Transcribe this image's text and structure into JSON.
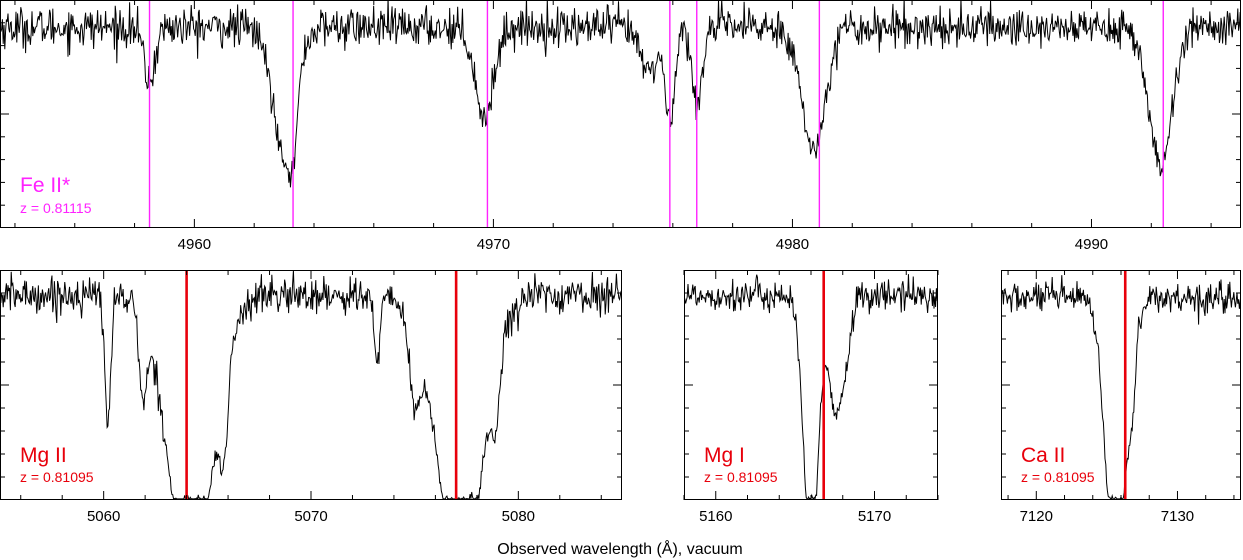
{
  "figure": {
    "xlabel": "Observed wavelength (Å), vacuum"
  },
  "colors": {
    "fe_marker": "#ff22ff",
    "red_marker": "#e8000b",
    "spectrum": "#000000",
    "frame": "#000000"
  },
  "chart_data": [
    {
      "type": "line",
      "id": "fe",
      "ion": "Fe II*",
      "redshift": "z = 0.81115",
      "label_color": "#ff22ff",
      "xlim": [
        4953.5,
        4995.0
      ],
      "ylim": [
        0.0,
        1.0
      ],
      "xticks": [
        4960,
        4970,
        4980,
        4990
      ],
      "xtick_labels": [
        "4960",
        "4970",
        "4980",
        "4990"
      ],
      "continuum": 0.88,
      "markers": [
        4958.5,
        4963.3,
        4969.8,
        4975.9,
        4976.8,
        4980.9,
        4992.4
      ],
      "absorption": [
        {
          "center": 4958.5,
          "sigma": 0.18,
          "depth": 0.28
        },
        {
          "center": 4963.0,
          "sigma": 0.38,
          "depth": 0.62
        },
        {
          "center": 4963.3,
          "sigma": 0.14,
          "depth": 0.25
        },
        {
          "center": 4969.7,
          "sigma": 0.3,
          "depth": 0.45
        },
        {
          "center": 4975.2,
          "sigma": 0.3,
          "depth": 0.22
        },
        {
          "center": 4975.9,
          "sigma": 0.16,
          "depth": 0.45
        },
        {
          "center": 4976.8,
          "sigma": 0.16,
          "depth": 0.4
        },
        {
          "center": 4980.7,
          "sigma": 0.38,
          "depth": 0.62
        },
        {
          "center": 4992.3,
          "sigma": 0.38,
          "depth": 0.7
        }
      ],
      "noise": 0.045
    },
    {
      "type": "line",
      "id": "mg2",
      "ion": "Mg II",
      "redshift": "z = 0.81095",
      "label_color": "#e8000b",
      "xlim": [
        5055.0,
        5085.0
      ],
      "ylim": [
        0.0,
        1.0
      ],
      "xticks": [
        5060,
        5070,
        5080
      ],
      "xtick_labels": [
        "5060",
        "5070",
        "5080"
      ],
      "continuum": 0.89,
      "markers": [
        5064.0,
        5077.0
      ],
      "absorption": [
        {
          "center": 5060.2,
          "sigma": 0.14,
          "depth": 0.62
        },
        {
          "center": 5061.9,
          "sigma": 0.18,
          "depth": 0.4
        },
        {
          "center": 5064.2,
          "sigma": 1.05,
          "depth": 1.4
        },
        {
          "center": 5065.8,
          "sigma": 0.2,
          "depth": 0.4
        },
        {
          "center": 5073.2,
          "sigma": 0.14,
          "depth": 0.35
        },
        {
          "center": 5075.0,
          "sigma": 0.28,
          "depth": 0.4
        },
        {
          "center": 5077.2,
          "sigma": 1.05,
          "depth": 1.4
        },
        {
          "center": 5078.9,
          "sigma": 0.2,
          "depth": 0.3
        }
      ],
      "noise": 0.04
    },
    {
      "type": "line",
      "id": "mg1",
      "ion": "Mg I",
      "redshift": "z = 0.81095",
      "label_color": "#e8000b",
      "xlim": [
        5158.0,
        5174.0
      ],
      "ylim": [
        0.0,
        1.0
      ],
      "xticks": [
        5160,
        5170
      ],
      "xtick_labels": [
        "5160",
        "5170"
      ],
      "continuum": 0.89,
      "markers": [
        5166.8
      ],
      "absorption": [
        {
          "center": 5166.0,
          "sigma": 0.45,
          "depth": 1.3
        },
        {
          "center": 5167.5,
          "sigma": 0.4,
          "depth": 0.55
        },
        {
          "center": 5168.2,
          "sigma": 0.35,
          "depth": 0.25
        }
      ],
      "noise": 0.035
    },
    {
      "type": "line",
      "id": "ca2",
      "ion": "Ca II",
      "redshift": "z = 0.81095",
      "label_color": "#e8000b",
      "xlim": [
        7117.5,
        7134.5
      ],
      "ylim": [
        0.0,
        1.0
      ],
      "xticks": [
        7120,
        7130
      ],
      "xtick_labels": [
        "7120",
        "7130"
      ],
      "continuum": 0.88,
      "markers": [
        7126.3
      ],
      "absorption": [
        {
          "center": 7125.6,
          "sigma": 0.7,
          "depth": 1.35
        },
        {
          "center": 7126.8,
          "sigma": 0.3,
          "depth": 0.3
        }
      ],
      "noise": 0.035
    }
  ]
}
